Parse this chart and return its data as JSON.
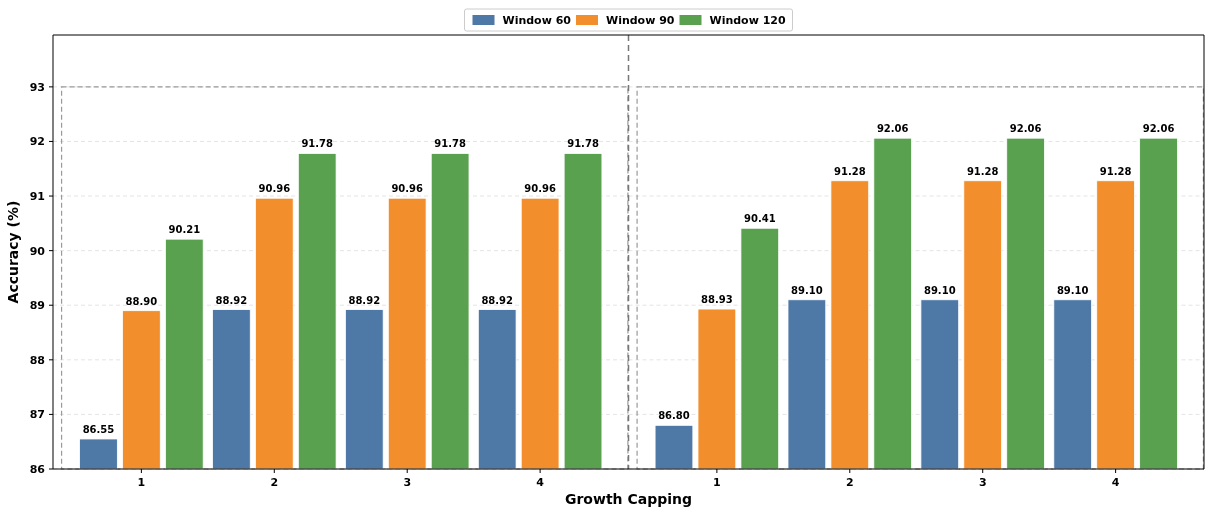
{
  "chart_data": [
    {
      "type": "bar",
      "xlabel": "Growth Capping",
      "ylabel": "Accuracy (%)",
      "categories": [
        "1",
        "2",
        "3",
        "4"
      ],
      "series": [
        {
          "name": "Window 60",
          "color": "#4e79a7",
          "values": [
            86.55,
            88.92,
            88.92,
            88.92
          ]
        },
        {
          "name": "Window 90",
          "color": "#f28e2b",
          "values": [
            88.9,
            90.96,
            90.96,
            90.96
          ],
          "value_labels": [
            "88.90",
            "90.96",
            "90.96",
            "90.96"
          ]
        },
        {
          "name": "Window 120",
          "color": "#59a14f",
          "values": [
            90.21,
            91.78,
            91.78,
            91.78
          ]
        }
      ],
      "ylim": [
        86,
        93.95
      ],
      "yticks": [
        86,
        87,
        88,
        89,
        90,
        91,
        92,
        93
      ],
      "grid": "y",
      "legend": "top",
      "data_labels": true
    },
    {
      "type": "bar",
      "categories": [
        "1",
        "2",
        "3",
        "4"
      ],
      "series": [
        {
          "color": "#4e79a7",
          "values": [
            86.8,
            89.1,
            89.1,
            89.1
          ],
          "value_labels": [
            "86.80",
            "89.10",
            "89.10",
            "89.10"
          ]
        },
        {
          "color": "#f28e2b",
          "values": [
            88.93,
            91.28,
            91.28,
            91.28
          ]
        },
        {
          "color": "#59a14f",
          "values": [
            90.41,
            92.06,
            92.06,
            92.06
          ]
        }
      ],
      "ylim": [
        86,
        93.95
      ],
      "yticks": [
        86,
        87,
        88,
        89,
        90,
        91,
        92,
        93
      ],
      "grid": "y",
      "tick_labels": "x",
      "data_labels": true
    }
  ]
}
